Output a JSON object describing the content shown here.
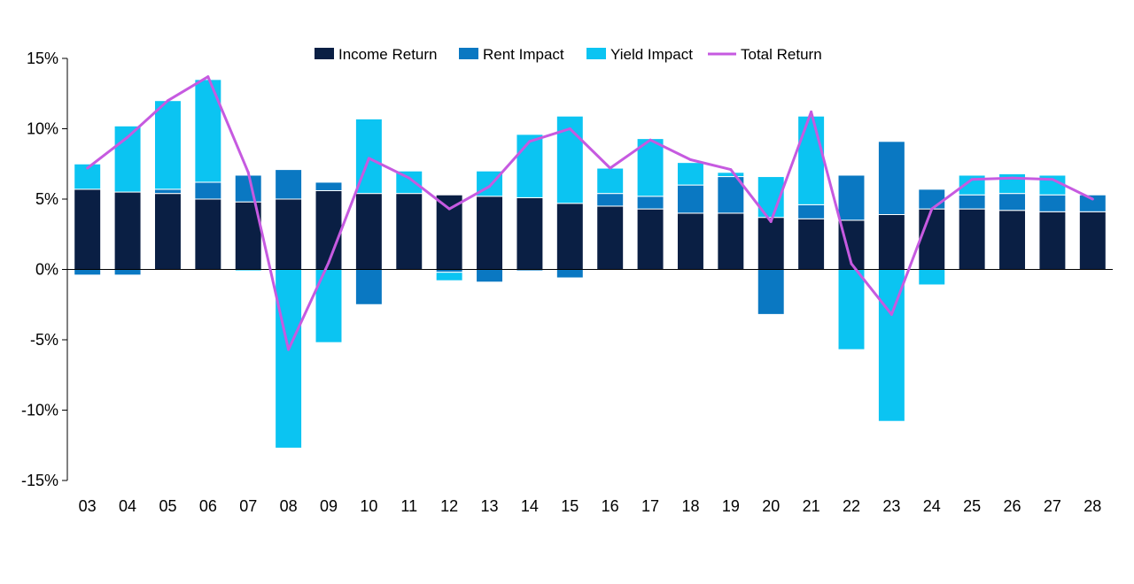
{
  "chart_data": {
    "type": "bar",
    "stacked": true,
    "categories": [
      "03",
      "04",
      "05",
      "06",
      "07",
      "08",
      "09",
      "10",
      "11",
      "12",
      "13",
      "14",
      "15",
      "16",
      "17",
      "18",
      "19",
      "20",
      "21",
      "22",
      "23",
      "24",
      "25",
      "26",
      "27",
      "28"
    ],
    "series": [
      {
        "name": "Income Return",
        "color": "#0a1f44",
        "values": [
          5.7,
          5.5,
          5.4,
          5.0,
          4.8,
          5.0,
          5.6,
          5.4,
          5.4,
          5.3,
          5.2,
          5.1,
          4.7,
          4.5,
          4.3,
          4.0,
          4.0,
          3.7,
          3.6,
          3.5,
          3.9,
          4.3,
          4.3,
          4.2,
          4.1,
          4.1
        ]
      },
      {
        "name": "Rent Impact",
        "color": "#0a78c2",
        "values": [
          -0.4,
          -0.4,
          0.3,
          1.2,
          1.9,
          2.1,
          0.6,
          -2.5,
          0.0,
          -0.2,
          -0.9,
          -0.1,
          -0.6,
          0.9,
          0.9,
          2.0,
          2.6,
          -3.2,
          1.0,
          3.2,
          5.2,
          1.4,
          1.0,
          1.2,
          1.2,
          1.2
        ]
      },
      {
        "name": "Yield Impact",
        "color": "#0bc4f2",
        "values": [
          1.8,
          4.7,
          6.3,
          7.3,
          -0.1,
          -12.7,
          -5.2,
          5.3,
          1.6,
          -0.6,
          1.8,
          4.5,
          6.2,
          1.8,
          4.1,
          1.6,
          0.3,
          2.9,
          6.3,
          -5.7,
          -10.8,
          -1.1,
          1.4,
          1.4,
          1.4,
          0.0
        ]
      }
    ],
    "line_series": {
      "name": "Total Return",
      "color": "#c65ae0",
      "values": [
        7.2,
        9.4,
        12.0,
        13.7,
        6.9,
        -5.7,
        0.5,
        7.9,
        6.5,
        4.3,
        5.9,
        9.1,
        10.0,
        7.2,
        9.2,
        7.8,
        7.1,
        3.4,
        11.2,
        0.4,
        -3.2,
        4.3,
        6.4,
        6.5,
        6.4,
        5.0
      ]
    },
    "y_tick_labels": [
      "-15%",
      "-10%",
      "-5%",
      "0%",
      "5%",
      "10%",
      "15%"
    ],
    "y_ticks": [
      -15,
      -10,
      -5,
      0,
      5,
      10,
      15
    ],
    "ylim": [
      -15,
      15
    ],
    "legend_position": "top",
    "grid": false,
    "title": "",
    "xlabel": "",
    "ylabel": ""
  }
}
